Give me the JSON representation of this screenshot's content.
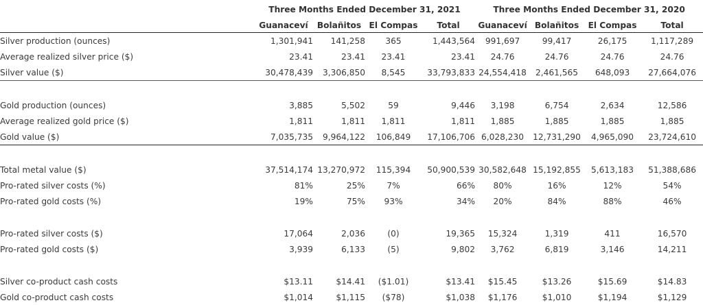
{
  "periods": [
    "Three Months Ended December 31, 2021",
    "Three Months Ended December 31, 2020"
  ],
  "columns": [
    "Guanaceví",
    "Bolañitos",
    "El Compas",
    "Total",
    "Guanaceví",
    "Bolañitos",
    "El Compas",
    "Total"
  ],
  "rows": [
    {
      "label": "Silver production (ounces)",
      "values": [
        "1,301,941",
        "141,258",
        "365",
        "1,443,564",
        "991,697",
        "99,417",
        "26,175",
        "1,117,289"
      ]
    },
    {
      "label": "Average realized silver price ($)",
      "values": [
        "23.41",
        "23.41",
        "23.41",
        "23.41",
        "24.76",
        "24.76",
        "24.76",
        "24.76"
      ]
    },
    {
      "label": "Silver value ($)",
      "values": [
        "30,478,439",
        "3,306,850",
        "8,545",
        "33,793,833",
        "24,554,418",
        "2,461,565",
        "648,093",
        "27,664,076"
      ]
    },
    {
      "label": "Gold production (ounces)",
      "values": [
        "3,885",
        "5,502",
        "59",
        "9,446",
        "3,198",
        "6,754",
        "2,634",
        "12,586"
      ]
    },
    {
      "label": "Average realized gold price ($)",
      "values": [
        "1,811",
        "1,811",
        "1,811",
        "1,811",
        "1,885",
        "1,885",
        "1,885",
        "1,885"
      ]
    },
    {
      "label": "Gold value ($)",
      "values": [
        "7,035,735",
        "9,964,122",
        "106,849",
        "17,106,706",
        "6,028,230",
        "12,731,290",
        "4,965,090",
        "23,724,610"
      ]
    },
    {
      "label": "Total metal value ($)",
      "values": [
        "37,514,174",
        "13,270,972",
        "115,394",
        "50,900,539",
        "30,582,648",
        "15,192,855",
        "5,613,183",
        "51,388,686"
      ]
    },
    {
      "label": "Pro-rated silver costs (%)",
      "values": [
        "81%",
        "25%",
        "7%",
        "66%",
        "80%",
        "16%",
        "12%",
        "54%"
      ]
    },
    {
      "label": "Pro-rated gold costs (%)",
      "values": [
        "19%",
        "75%",
        "93%",
        "34%",
        "20%",
        "84%",
        "88%",
        "46%"
      ]
    },
    {
      "label": "Pro-rated silver costs ($)",
      "values": [
        "17,064",
        "2,036",
        "(0)",
        "19,365",
        "15,324",
        "1,319",
        "411",
        "16,570"
      ]
    },
    {
      "label": "Pro-rated gold costs ($)",
      "values": [
        "3,939",
        "6,133",
        "(5)",
        "9,802",
        "3,762",
        "6,819",
        "3,146",
        "14,211"
      ]
    },
    {
      "label": "Silver co-product cash costs",
      "values": [
        "$13.11",
        "$14.41",
        "($1.01)",
        "$13.41",
        "$15.45",
        "$13.26",
        "$15.69",
        "$14.83"
      ]
    },
    {
      "label": "Gold co-product cash costs",
      "values": [
        "$1,014",
        "$1,115",
        "($78)",
        "$1,038",
        "$1,176",
        "$1,010",
        "$1,194",
        "$1,129"
      ]
    }
  ]
}
